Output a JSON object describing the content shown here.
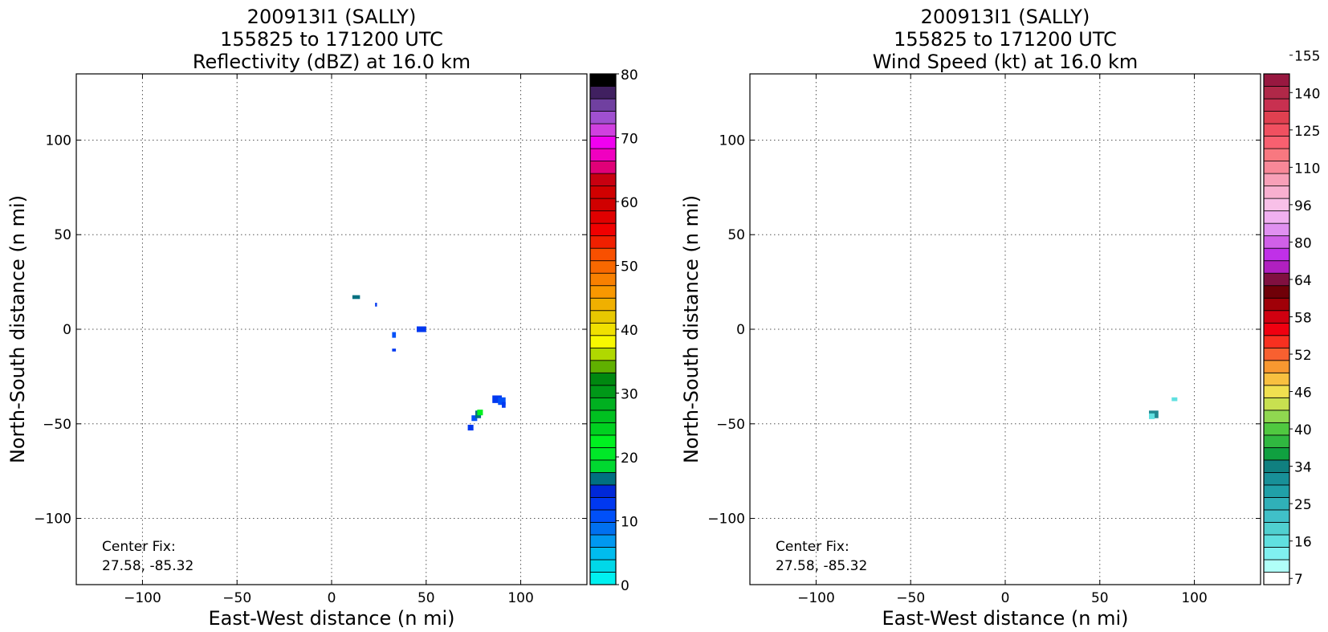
{
  "chart_data": [
    {
      "type": "heatmap",
      "title_lines": [
        "200913I1 (SALLY)",
        "155825 to 171200 UTC",
        "Reflectivity (dBZ) at 16.0 km"
      ],
      "xlabel": "East-West distance (n mi)",
      "ylabel": "North-South distance (n mi)",
      "xlim": [
        -135,
        135
      ],
      "ylim": [
        -135,
        135
      ],
      "xticks": [
        "−100",
        "−50",
        "0",
        "50",
        "100"
      ],
      "xtick_values": [
        -100,
        -50,
        0,
        50,
        100
      ],
      "yticks": [
        "−100",
        "−50",
        "0",
        "50",
        "100"
      ],
      "ytick_values": [
        -100,
        -50,
        0,
        50,
        100
      ],
      "grid": true,
      "annotation_lines": [
        "Center Fix:",
        "27.58, -85.32"
      ],
      "colorbar": {
        "min": 0,
        "max": 80,
        "ticks": [
          "0",
          "10",
          "20",
          "30",
          "40",
          "50",
          "60",
          "70",
          "80"
        ],
        "tick_values": [
          0,
          10,
          20,
          30,
          40,
          50,
          60,
          70,
          80
        ],
        "colors": [
          "#00f0f0",
          "#00d8e8",
          "#00bcee",
          "#0098f0",
          "#0070f0",
          "#0050f8",
          "#0038f0",
          "#0028d8",
          "#007080",
          "#00d830",
          "#00e828",
          "#00f020",
          "#00d020",
          "#00c020",
          "#00b020",
          "#009818",
          "#008810",
          "#60b000",
          "#b0d800",
          "#f8f800",
          "#f0e000",
          "#e8c800",
          "#f0b000",
          "#f89800",
          "#f88000",
          "#f86800",
          "#f85000",
          "#f02000",
          "#f00000",
          "#e00000",
          "#d00000",
          "#d00000",
          "#c80010",
          "#e00078",
          "#f000c0",
          "#f000f0",
          "#d040e0",
          "#a050d0",
          "#7040a0",
          "#402060",
          "#000000"
        ]
      },
      "data_cells": [
        {
          "x": 11,
          "y": 17,
          "w": 4,
          "h": 2,
          "dbz": 16
        },
        {
          "x": 23,
          "y": 13,
          "w": 1,
          "h": 2,
          "dbz": 12
        },
        {
          "x": 32,
          "y": -3,
          "w": 2,
          "h": 3,
          "dbz": 10
        },
        {
          "x": 32,
          "y": -11,
          "w": 2,
          "h": 1.5,
          "dbz": 12
        },
        {
          "x": 45,
          "y": 0,
          "w": 5,
          "h": 3,
          "dbz": 12
        },
        {
          "x": 72,
          "y": -52,
          "w": 3,
          "h": 3,
          "dbz": 12
        },
        {
          "x": 74,
          "y": -47,
          "w": 3,
          "h": 3,
          "dbz": 10
        },
        {
          "x": 76,
          "y": -45,
          "w": 3,
          "h": 4,
          "dbz": 16
        },
        {
          "x": 77,
          "y": -44,
          "w": 3,
          "h": 3,
          "dbz": 22
        },
        {
          "x": 85,
          "y": -37,
          "w": 5,
          "h": 4,
          "dbz": 12
        },
        {
          "x": 88,
          "y": -38,
          "w": 4,
          "h": 4,
          "dbz": 11
        },
        {
          "x": 90,
          "y": -40,
          "w": 2,
          "h": 3,
          "dbz": 12
        }
      ]
    },
    {
      "type": "heatmap",
      "title_lines": [
        "200913I1 (SALLY)",
        "155825 to 171200 UTC",
        "Wind Speed (kt) at 16.0 km"
      ],
      "xlabel": "East-West distance (n mi)",
      "ylabel": "North-South distance (n mi)",
      "xlim": [
        -135,
        135
      ],
      "ylim": [
        -135,
        135
      ],
      "xticks": [
        "−100",
        "−50",
        "0",
        "50",
        "100"
      ],
      "xtick_values": [
        -100,
        -50,
        0,
        50,
        100
      ],
      "yticks": [
        "−100",
        "−50",
        "0",
        "50",
        "100"
      ],
      "ytick_values": [
        -100,
        -50,
        0,
        50,
        100
      ],
      "grid": true,
      "annotation_lines": [
        "Center Fix:",
        "27.58, -85.32"
      ],
      "colorbar": {
        "ticks": [
          "7",
          "16",
          "25",
          "34",
          "40",
          "46",
          "52",
          "58",
          "64",
          "80",
          "96",
          "110",
          "125",
          "140",
          "155"
        ],
        "colors": [
          "#ffffff",
          "#b0fff8",
          "#80f0f0",
          "#60e0e0",
          "#50d0d0",
          "#40c0c8",
          "#30b0b8",
          "#20a0a8",
          "#189098",
          "#108080",
          "#10a040",
          "#30b840",
          "#50c840",
          "#90d850",
          "#c8e050",
          "#f0e050",
          "#f8c040",
          "#f89830",
          "#f86030",
          "#f83020",
          "#f00010",
          "#d00010",
          "#a00008",
          "#700008",
          "#801040",
          "#b020c0",
          "#c030e8",
          "#d060e8",
          "#e090f0",
          "#f0b0f0",
          "#f8c0e8",
          "#f8b0d0",
          "#f8a0b8",
          "#f88898",
          "#f87880",
          "#f86070",
          "#f05060",
          "#e04050",
          "#c83050",
          "#b02848",
          "#981840"
        ]
      },
      "data_cells": [
        {
          "x": 76,
          "y": -45,
          "w": 5,
          "h": 4,
          "kt": 25
        },
        {
          "x": 76,
          "y": -46,
          "w": 3,
          "h": 3,
          "kt": 16
        },
        {
          "x": 88,
          "y": -37,
          "w": 3,
          "h": 2,
          "kt": 16
        }
      ]
    }
  ]
}
